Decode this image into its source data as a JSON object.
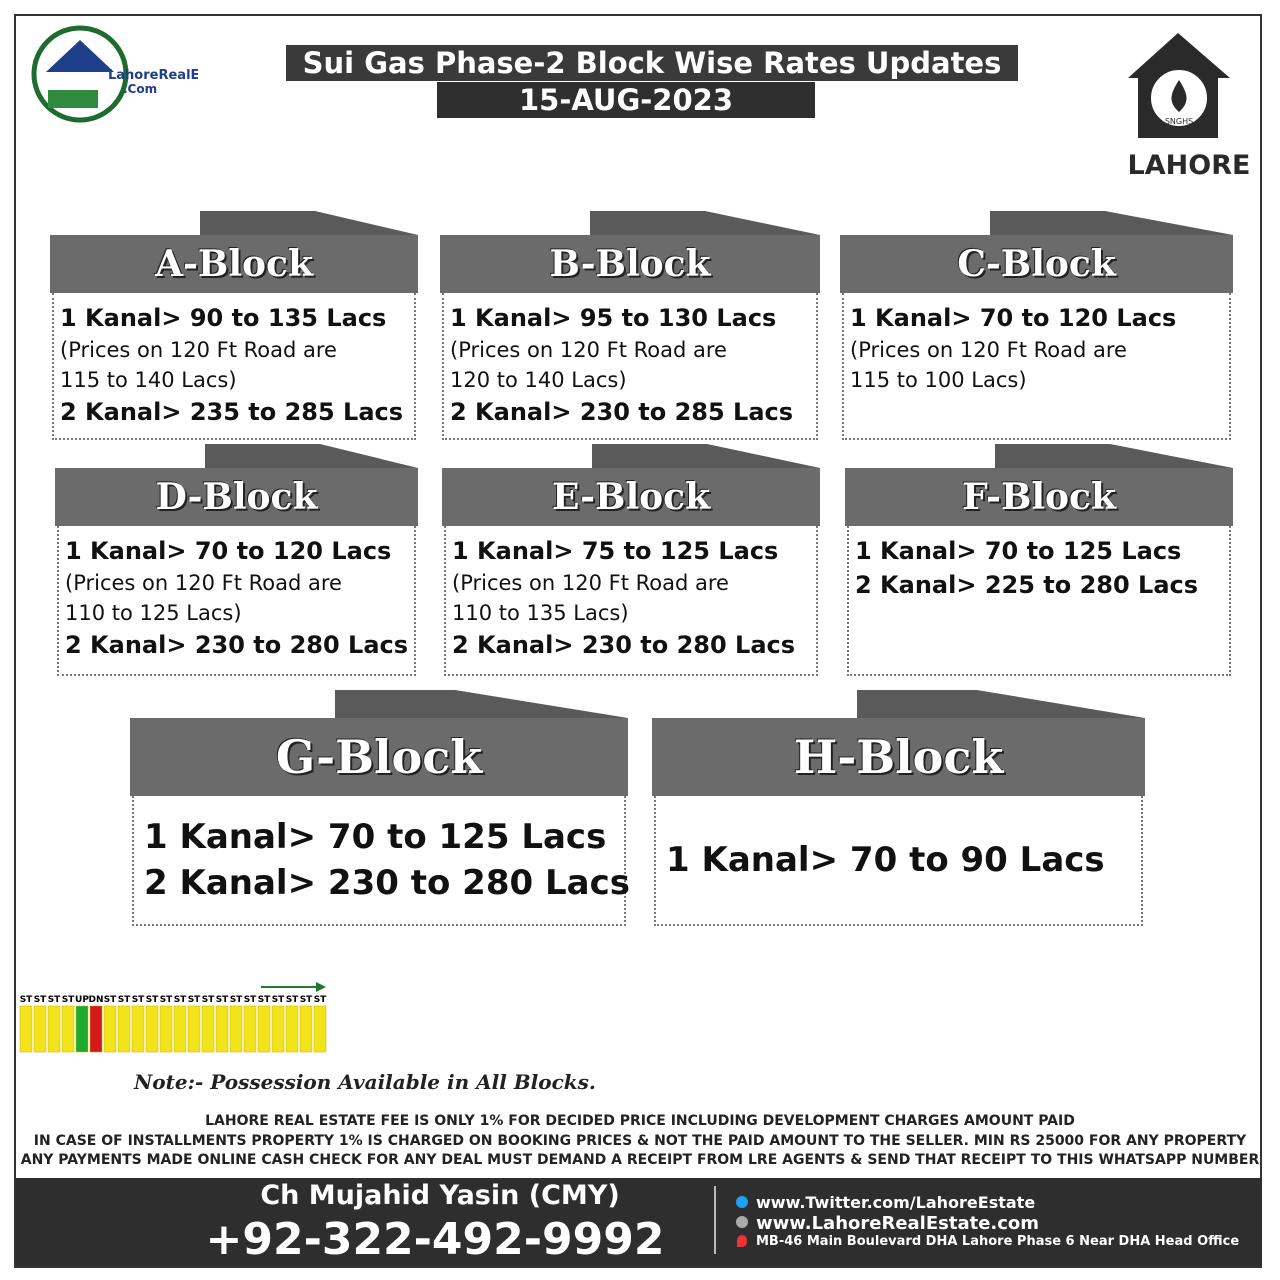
{
  "header": {
    "logo_text": "LahoreRealEstate",
    "logo_sub": ".Com",
    "title": "Sui Gas Phase-2 Block Wise Rates Updates",
    "date": "15-AUG-2023",
    "badge_text": "SNGHS",
    "city": "LAHORE"
  },
  "blocks": [
    {
      "name": "A-Block",
      "lines": [
        {
          "text": "1 Kanal> 90 to 135 Lacs",
          "bold": true
        },
        {
          "text": "(Prices on 120 Ft Road are",
          "bold": false
        },
        {
          "text": "115 to 140 Lacs)",
          "bold": false
        },
        {
          "text": "2 Kanal> 235 to 285 Lacs",
          "bold": true
        }
      ]
    },
    {
      "name": "B-Block",
      "lines": [
        {
          "text": "1 Kanal> 95 to 130 Lacs",
          "bold": true
        },
        {
          "text": "(Prices on 120 Ft Road are",
          "bold": false
        },
        {
          "text": "120 to 140 Lacs)",
          "bold": false
        },
        {
          "text": "2 Kanal> 230 to 285 Lacs",
          "bold": true
        }
      ]
    },
    {
      "name": "C-Block",
      "lines": [
        {
          "text": "1 Kanal> 70 to 120 Lacs",
          "bold": true
        },
        {
          "text": "(Prices on 120 Ft Road are",
          "bold": false
        },
        {
          "text": "115 to 100 Lacs)",
          "bold": false
        }
      ]
    },
    {
      "name": "D-Block",
      "lines": [
        {
          "text": "1 Kanal> 70 to 120 Lacs",
          "bold": true
        },
        {
          "text": "(Prices on 120 Ft Road are",
          "bold": false
        },
        {
          "text": "110 to 125 Lacs)",
          "bold": false
        },
        {
          "text": "2 Kanal> 230 to 280 Lacs",
          "bold": true
        }
      ]
    },
    {
      "name": "E-Block",
      "lines": [
        {
          "text": "1 Kanal> 75 to 125 Lacs",
          "bold": true
        },
        {
          "text": "(Prices on 120 Ft Road are",
          "bold": false
        },
        {
          "text": "110 to 135 Lacs)",
          "bold": false
        },
        {
          "text": "2 Kanal> 230 to 280 Lacs",
          "bold": true
        }
      ]
    },
    {
      "name": "F-Block",
      "lines": [
        {
          "text": "1 Kanal> 70 to 125 Lacs",
          "bold": true
        },
        {
          "text": "2 Kanal> 225 to 280 Lacs",
          "bold": true
        }
      ]
    },
    {
      "name": "G-Block",
      "lines": [
        {
          "text": "1 Kanal> 70 to 125 Lacs",
          "bold": true
        },
        {
          "text": "2 Kanal> 230 to 280 Lacs",
          "bold": true
        }
      ]
    },
    {
      "name": "H-Block",
      "lines": [
        {
          "text": "1 Kanal> 70 to 90 Lacs",
          "bold": true
        }
      ]
    }
  ],
  "strip": {
    "labels": [
      "ST",
      "ST",
      "ST",
      "ST",
      "UP",
      "DN",
      "ST",
      "ST",
      "ST",
      "ST",
      "ST",
      "ST",
      "ST",
      "ST",
      "ST",
      "ST",
      "ST",
      "ST",
      "ST",
      "ST",
      "ST",
      "ST"
    ]
  },
  "note": "Note:- Possession Available in All Blocks.",
  "fees": [
    "LAHORE REAL ESTATE FEE IS ONLY 1% FOR DECIDED PRICE INCLUDING DEVELOPMENT CHARGES AMOUNT PAID",
    "IN CASE OF INSTALLMENTS PROPERTY 1% IS CHARGED ON  BOOKING PRICES & NOT THE PAID AMOUNT TO THE SELLER. MIN RS 25000 FOR ANY PROPERTY",
    "ANY PAYMENTS MADE ONLINE CASH CHECK FOR ANY DEAL MUST DEMAND A RECEIPT FROM LRE AGENTS & SEND THAT RECEIPT TO THIS WHATSAPP NUMBER"
  ],
  "footer": {
    "name": "Ch Mujahid Yasin (CMY)",
    "phone": "+92-322-492-9992",
    "twitter": "www.Twitter.com/LahoreEstate",
    "website": "www.LahoreRealEstate.com",
    "address": "MB-46 Main Boulevard DHA Lahore Phase 6 Near DHA Head Office"
  }
}
